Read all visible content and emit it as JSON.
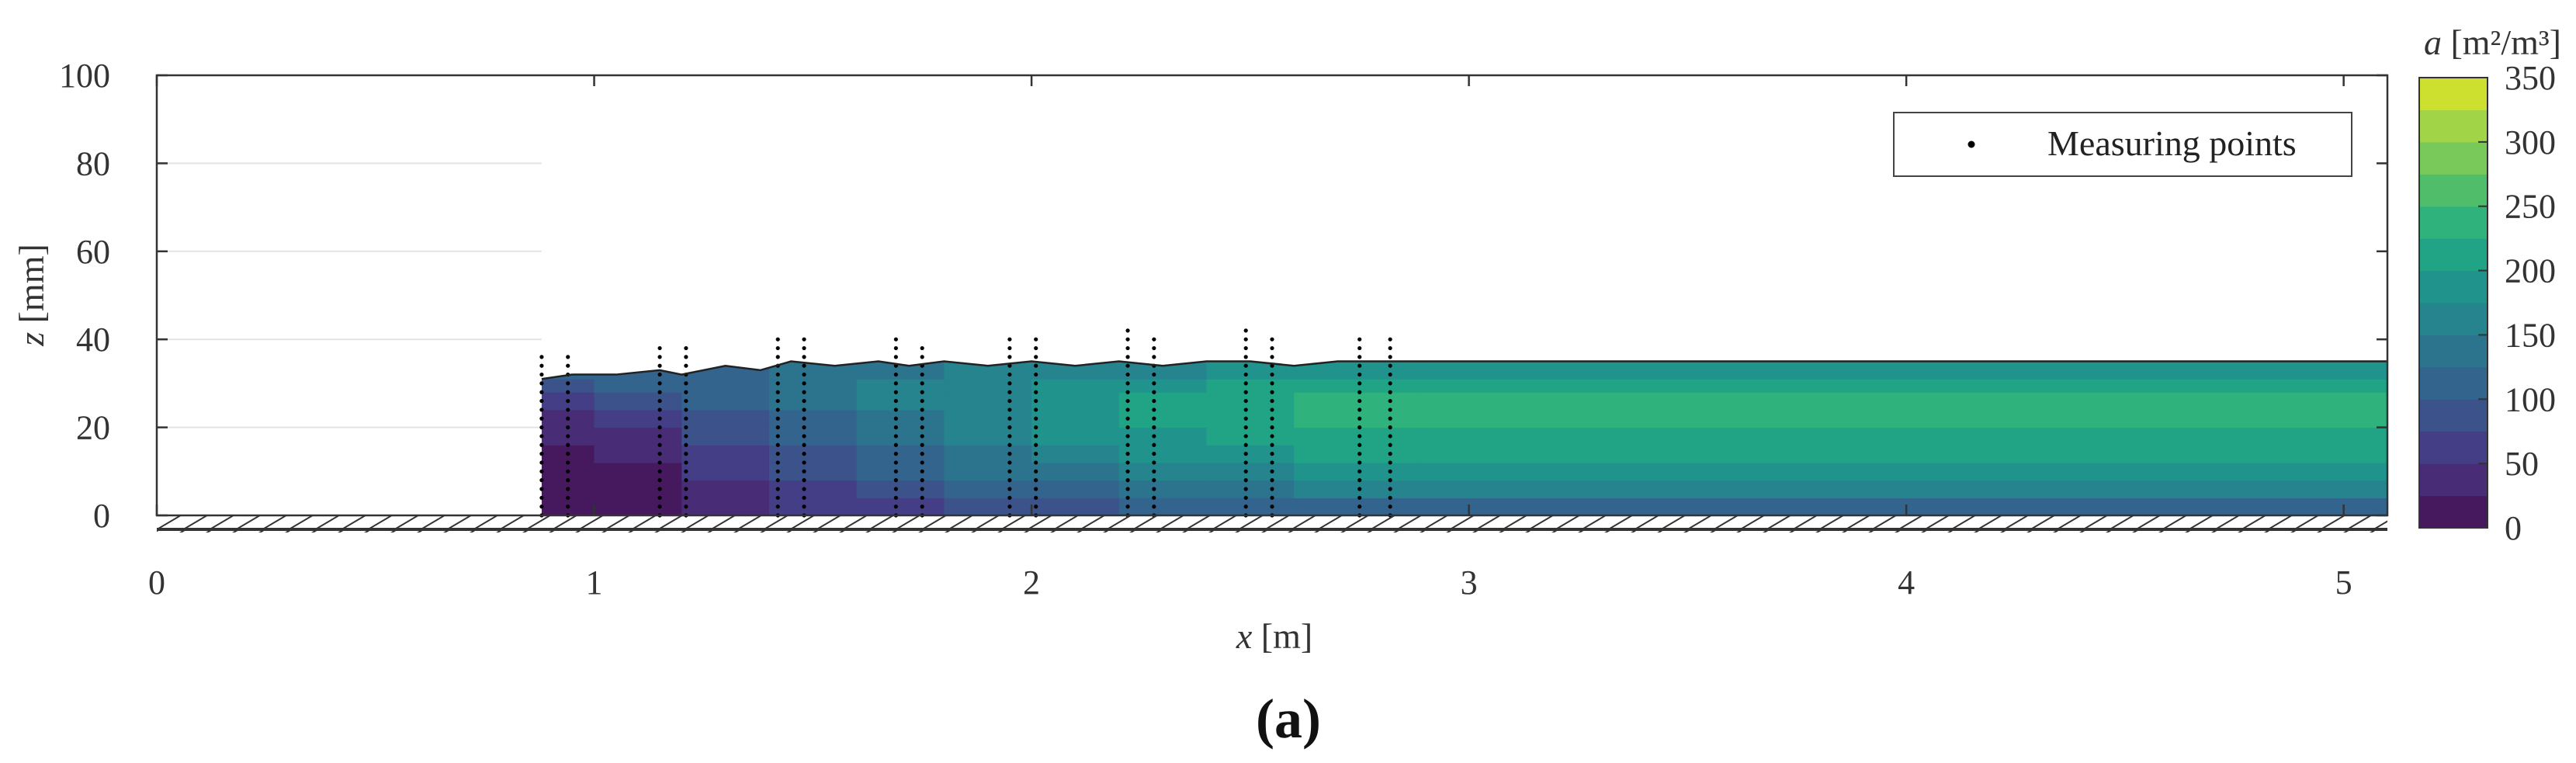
{
  "chart_data": {
    "type": "heatmap",
    "panel_label": "(a)",
    "xlabel_var": "x",
    "xlabel_unit": " [m]",
    "ylabel_var": "z",
    "ylabel_unit": " [mm]",
    "xlim": [
      0,
      5.1
    ],
    "ylim": [
      0,
      100
    ],
    "x_ticks": [
      0,
      1,
      2,
      3,
      4,
      5
    ],
    "y_ticks": [
      0,
      20,
      40,
      60,
      80,
      100
    ],
    "grid": true,
    "legend": {
      "entries": [
        "Measuring points"
      ],
      "placement": "top-right"
    },
    "colorbar": {
      "label_var": "a",
      "label_unit_html": " [m²/m³]",
      "min": 0,
      "max": 350,
      "ticks": [
        0,
        50,
        100,
        150,
        200,
        250,
        300,
        350
      ],
      "levels": [
        0,
        25,
        50,
        75,
        100,
        125,
        150,
        175,
        200,
        225,
        250,
        275,
        300,
        325,
        350
      ],
      "colors": [
        "#46185e",
        "#482c75",
        "#433e86",
        "#3b528b",
        "#32648e",
        "#2c738e",
        "#25848e",
        "#1f938c",
        "#21a386",
        "#2fb27c",
        "#50bd6b",
        "#78c95a",
        "#a2d448",
        "#cde030",
        "#f0e524"
      ]
    },
    "free_surface": {
      "x": [
        0.88,
        0.95,
        1.05,
        1.15,
        1.2,
        1.3,
        1.38,
        1.45,
        1.55,
        1.65,
        1.72,
        1.8,
        1.9,
        2.0,
        2.1,
        2.2,
        2.3,
        2.4,
        2.5,
        2.6,
        2.7,
        2.8,
        2.88,
        5.1
      ],
      "z": [
        31,
        32,
        32,
        33,
        32,
        34,
        33,
        35,
        34,
        35,
        34,
        35,
        34,
        35,
        34,
        35,
        34,
        35,
        35,
        34,
        35,
        35,
        35,
        35
      ]
    },
    "measuring_point_x": [
      0.88,
      0.94,
      1.15,
      1.21,
      1.42,
      1.48,
      1.69,
      1.75,
      1.95,
      2.01,
      2.22,
      2.28,
      2.49,
      2.55,
      2.75,
      2.82
    ],
    "measuring_point_top_z": [
      36,
      36,
      38,
      38,
      40,
      40,
      40,
      39,
      40,
      40,
      42,
      40,
      42,
      40,
      40,
      40
    ],
    "field_rows": [
      {
        "z": [
          0,
          4
        ],
        "x": [
          0.88,
          1.0,
          1.2,
          1.4,
          1.6,
          1.8,
          2.0,
          2.2,
          2.4,
          2.6,
          2.88,
          5.1
        ],
        "a": [
          5,
          10,
          35,
          55,
          70,
          85,
          95,
          105,
          110,
          115,
          120,
          120
        ]
      },
      {
        "z": [
          4,
          8
        ],
        "x": [
          0.88,
          1.0,
          1.2,
          1.4,
          1.6,
          1.8,
          2.0,
          2.2,
          2.4,
          2.6,
          2.88,
          5.1
        ],
        "a": [
          5,
          15,
          45,
          65,
          85,
          105,
          120,
          135,
          145,
          150,
          150,
          150
        ]
      },
      {
        "z": [
          8,
          12
        ],
        "x": [
          0.88,
          1.0,
          1.2,
          1.4,
          1.6,
          1.8,
          2.0,
          2.2,
          2.4,
          2.6,
          2.88,
          5.1
        ],
        "a": [
          10,
          20,
          55,
          80,
          105,
          125,
          140,
          155,
          165,
          175,
          180,
          180
        ]
      },
      {
        "z": [
          12,
          16
        ],
        "x": [
          0.88,
          1.0,
          1.2,
          1.4,
          1.6,
          1.8,
          2.0,
          2.2,
          2.4,
          2.6,
          2.88,
          5.1
        ],
        "a": [
          15,
          30,
          65,
          95,
          120,
          140,
          160,
          175,
          190,
          200,
          205,
          205
        ]
      },
      {
        "z": [
          16,
          20
        ],
        "x": [
          0.88,
          1.0,
          1.2,
          1.4,
          1.6,
          1.8,
          2.0,
          2.2,
          2.4,
          2.6,
          2.88,
          5.1
        ],
        "a": [
          25,
          45,
          80,
          110,
          135,
          155,
          175,
          190,
          205,
          215,
          220,
          220
        ]
      },
      {
        "z": [
          20,
          24
        ],
        "x": [
          0.88,
          1.0,
          1.2,
          1.4,
          1.6,
          1.8,
          2.0,
          2.2,
          2.4,
          2.6,
          2.88,
          5.1
        ],
        "a": [
          45,
          65,
          95,
          120,
          145,
          165,
          185,
          200,
          215,
          225,
          235,
          235
        ]
      },
      {
        "z": [
          24,
          28
        ],
        "x": [
          0.88,
          1.0,
          1.2,
          1.4,
          1.6,
          1.8,
          2.0,
          2.2,
          2.4,
          2.6,
          2.88,
          5.1
        ],
        "a": [
          70,
          85,
          110,
          130,
          150,
          170,
          185,
          205,
          220,
          235,
          245,
          245
        ]
      },
      {
        "z": [
          28,
          31
        ],
        "x": [
          0.88,
          1.0,
          1.2,
          1.4,
          1.6,
          1.8,
          2.0,
          2.2,
          2.4,
          2.6,
          2.88,
          5.1
        ],
        "a": [
          90,
          100,
          115,
          130,
          150,
          165,
          180,
          195,
          205,
          215,
          220,
          220
        ]
      },
      {
        "z": [
          31,
          35
        ],
        "x": [
          0.88,
          1.0,
          1.2,
          1.4,
          1.6,
          1.8,
          2.0,
          2.2,
          2.4,
          2.6,
          2.88,
          5.1
        ],
        "a": [
          100,
          105,
          115,
          125,
          140,
          150,
          160,
          170,
          180,
          190,
          195,
          195
        ]
      }
    ]
  }
}
